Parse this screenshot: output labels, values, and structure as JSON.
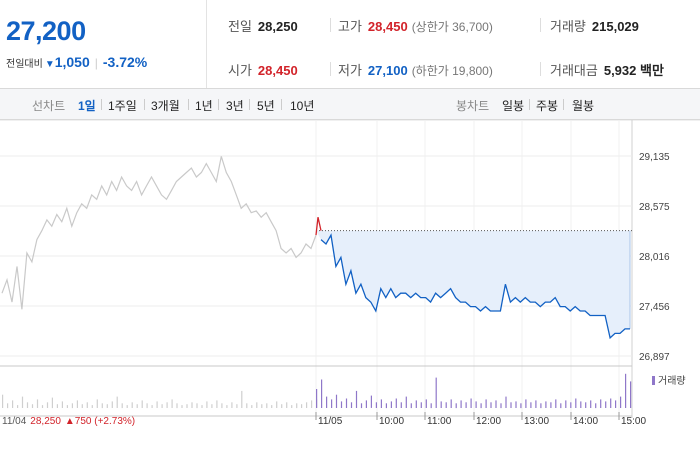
{
  "price": {
    "current": "27,200",
    "change_label": "전일대비",
    "change_arrow": "▼",
    "change_amount": "1,050",
    "change_pct": "-3.72%"
  },
  "stats": {
    "prev_close": {
      "label": "전일",
      "value": "28,250"
    },
    "open": {
      "label": "시가",
      "value": "28,450"
    },
    "high": {
      "label": "고가",
      "value": "28,450",
      "note": "(상한가 36,700)"
    },
    "low": {
      "label": "저가",
      "value": "27,100",
      "note": "(하한가 19,800)"
    },
    "volume": {
      "label": "거래량",
      "value": "215,029"
    },
    "amount": {
      "label": "거래대금",
      "value": "5,932 백만"
    }
  },
  "toolbar": {
    "line_label": "선차트",
    "line_periods": [
      "1일",
      "1주일",
      "3개월",
      "1년",
      "3년",
      "5년",
      "10년"
    ],
    "active_period": "1일",
    "candle_label": "봉차트",
    "candle_periods": [
      "일봉",
      "주봉",
      "월봉"
    ]
  },
  "chart_data": {
    "type": "line",
    "y_ticks": [
      "29,135",
      "28,575",
      "28,016",
      "27,456",
      "26,897"
    ],
    "ylim": [
      26897,
      29135
    ],
    "x_labels": [
      "11/04",
      "11/05",
      "10:00",
      "11:00",
      "12:00",
      "13:00",
      "14:00",
      "15:00"
    ],
    "prev_close_level": 28250,
    "previous_day": [
      27600,
      27750,
      27500,
      27900,
      27420,
      28050,
      27950,
      28200,
      28300,
      28420,
      28350,
      28480,
      28400,
      28550,
      28350,
      28500,
      28600,
      28550,
      28700,
      28650,
      28800,
      28700,
      28850,
      28750,
      28900,
      28800,
      28750,
      28850,
      28700,
      28800,
      28900,
      28800,
      28700,
      28650,
      28750,
      28850,
      28900,
      28950,
      29000,
      28900,
      28950,
      29050,
      28950,
      28850,
      29130,
      28950,
      28850,
      28700,
      28550,
      28600,
      28500,
      28520,
      28450,
      28500,
      28400,
      28300,
      28100,
      28050,
      28100,
      28000,
      28050,
      28150,
      28100,
      28250
    ],
    "today": [
      28450,
      28200,
      28150,
      28250,
      27900,
      28000,
      27700,
      27850,
      27600,
      27700,
      27550,
      27500,
      27400,
      27650,
      27550,
      27650,
      27550,
      27600,
      27600,
      27550,
      27600,
      27550,
      27550,
      27500,
      27600,
      27550,
      27600,
      27650,
      27550,
      27500,
      27500,
      27450,
      27450,
      27400,
      27450,
      27400,
      27400,
      27400,
      27700,
      27500,
      27550,
      27500,
      27550,
      27500,
      27500,
      27450,
      27500,
      27500,
      27550,
      27450,
      27450,
      27400,
      27450,
      27400,
      27400,
      27350,
      27350,
      27350,
      27350,
      27100,
      27150,
      27150,
      27200,
      27200
    ],
    "volume_series_name": "거래량",
    "volume_prev_day": [
      14,
      5,
      8,
      3,
      12,
      6,
      4,
      9,
      3,
      6,
      11,
      4,
      7,
      3,
      5,
      8,
      4,
      6,
      3,
      9,
      5,
      4,
      7,
      12,
      5,
      3,
      6,
      4,
      8,
      5,
      3,
      7,
      4,
      6,
      9,
      5,
      3,
      4,
      6,
      5,
      3,
      7,
      4,
      8,
      5,
      3,
      6,
      4,
      18,
      5,
      3,
      6,
      4,
      5,
      3,
      7,
      4,
      6,
      3,
      5,
      4,
      6,
      8,
      9
    ],
    "volume_today": [
      20,
      30,
      12,
      9,
      14,
      7,
      10,
      6,
      18,
      5,
      8,
      13,
      6,
      9,
      5,
      7,
      10,
      6,
      12,
      5,
      8,
      6,
      9,
      5,
      32,
      7,
      6,
      9,
      5,
      8,
      6,
      10,
      7,
      5,
      9,
      6,
      8,
      5,
      12,
      6,
      7,
      5,
      9,
      6,
      8,
      5,
      7,
      6,
      9,
      5,
      8,
      6,
      10,
      7,
      6,
      8,
      5,
      9,
      7,
      10,
      8,
      12,
      36,
      28
    ]
  },
  "legend": {
    "volume": "거래량"
  },
  "prev_day_info": {
    "date": "11/04",
    "price": "28,250",
    "arrow": "▲",
    "change": "750",
    "pct": "(+2.73%)"
  },
  "colors": {
    "blue": "#1261c4",
    "red": "#d2232a",
    "prev_line": "#c9c9c9",
    "fill": "#e6effb",
    "volume": "#8f77c9"
  }
}
